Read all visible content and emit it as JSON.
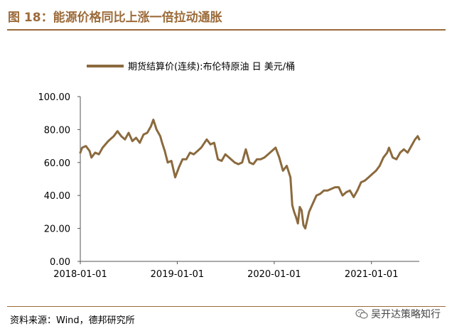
{
  "figure": {
    "title": "图 18：能源价格同比上涨一倍拉动通胀",
    "source": "资料来源：Wind，德邦研究所",
    "watermark": "吴开达策略知行",
    "watermark_icon": "wechat-icon",
    "accent_color": "#9c6b3a"
  },
  "chart_data": {
    "type": "line",
    "legend_position": "top",
    "grid": false,
    "ylim": [
      0,
      100
    ],
    "y_ticks": [
      "100.00",
      "80.00",
      "60.00",
      "40.00",
      "20.00",
      "0.00"
    ],
    "y_tick_values": [
      100,
      80,
      60,
      40,
      20,
      0
    ],
    "x_ticks": [
      "2018-01-01",
      "2019-01-01",
      "2020-01-01",
      "2021-01-01"
    ],
    "x_tick_values": [
      "2018-01-01",
      "2019-01-01",
      "2020-01-01",
      "2021-01-01"
    ],
    "xlim": [
      "2018-01-01",
      "2021-06-30"
    ],
    "series": [
      {
        "name": "期货结算价(连续):布伦特原油  日  美元/桶",
        "color": "#8b6a3e",
        "points": [
          [
            "2018-01-01",
            66
          ],
          [
            "2018-01-08",
            69
          ],
          [
            "2018-01-22",
            70
          ],
          [
            "2018-02-05",
            67
          ],
          [
            "2018-02-12",
            63
          ],
          [
            "2018-02-26",
            66
          ],
          [
            "2018-03-12",
            65
          ],
          [
            "2018-03-26",
            69
          ],
          [
            "2018-04-16",
            73
          ],
          [
            "2018-05-07",
            76
          ],
          [
            "2018-05-21",
            79
          ],
          [
            "2018-06-04",
            76
          ],
          [
            "2018-06-18",
            74
          ],
          [
            "2018-07-02",
            78
          ],
          [
            "2018-07-16",
            73
          ],
          [
            "2018-07-30",
            75
          ],
          [
            "2018-08-13",
            72
          ],
          [
            "2018-08-27",
            77
          ],
          [
            "2018-09-10",
            78
          ],
          [
            "2018-09-24",
            82
          ],
          [
            "2018-10-03",
            86
          ],
          [
            "2018-10-15",
            80
          ],
          [
            "2018-10-29",
            76
          ],
          [
            "2018-11-05",
            72
          ],
          [
            "2018-11-15",
            67
          ],
          [
            "2018-11-26",
            60
          ],
          [
            "2018-12-10",
            61
          ],
          [
            "2018-12-24",
            51
          ],
          [
            "2019-01-07",
            57
          ],
          [
            "2019-01-21",
            62
          ],
          [
            "2019-02-04",
            62
          ],
          [
            "2019-02-18",
            66
          ],
          [
            "2019-03-04",
            65
          ],
          [
            "2019-03-18",
            67
          ],
          [
            "2019-04-01",
            69
          ],
          [
            "2019-04-22",
            74
          ],
          [
            "2019-05-06",
            71
          ],
          [
            "2019-05-20",
            72
          ],
          [
            "2019-06-03",
            62
          ],
          [
            "2019-06-17",
            61
          ],
          [
            "2019-07-01",
            65
          ],
          [
            "2019-07-15",
            63
          ],
          [
            "2019-08-05",
            60
          ],
          [
            "2019-08-19",
            59
          ],
          [
            "2019-09-02",
            60
          ],
          [
            "2019-09-16",
            68
          ],
          [
            "2019-09-30",
            60
          ],
          [
            "2019-10-14",
            59
          ],
          [
            "2019-10-28",
            62
          ],
          [
            "2019-11-11",
            62
          ],
          [
            "2019-11-25",
            63
          ],
          [
            "2019-12-09",
            65
          ],
          [
            "2019-12-23",
            67
          ],
          [
            "2020-01-06",
            69
          ],
          [
            "2020-01-20",
            63
          ],
          [
            "2020-02-03",
            55
          ],
          [
            "2020-02-17",
            58
          ],
          [
            "2020-03-02",
            51
          ],
          [
            "2020-03-09",
            34
          ],
          [
            "2020-03-16",
            30
          ],
          [
            "2020-03-23",
            27
          ],
          [
            "2020-03-30",
            23
          ],
          [
            "2020-04-06",
            33
          ],
          [
            "2020-04-13",
            31
          ],
          [
            "2020-04-20",
            22
          ],
          [
            "2020-04-27",
            20
          ],
          [
            "2020-05-11",
            30
          ],
          [
            "2020-05-25",
            35
          ],
          [
            "2020-06-08",
            40
          ],
          [
            "2020-06-22",
            41
          ],
          [
            "2020-07-06",
            43
          ],
          [
            "2020-07-20",
            43
          ],
          [
            "2020-08-03",
            44
          ],
          [
            "2020-08-17",
            45
          ],
          [
            "2020-08-31",
            45
          ],
          [
            "2020-09-14",
            40
          ],
          [
            "2020-09-28",
            42
          ],
          [
            "2020-10-12",
            43
          ],
          [
            "2020-10-26",
            39
          ],
          [
            "2020-11-09",
            43
          ],
          [
            "2020-11-23",
            48
          ],
          [
            "2020-12-07",
            49
          ],
          [
            "2020-12-21",
            51
          ],
          [
            "2021-01-04",
            53
          ],
          [
            "2021-01-18",
            55
          ],
          [
            "2021-02-01",
            58
          ],
          [
            "2021-02-15",
            63
          ],
          [
            "2021-03-01",
            66
          ],
          [
            "2021-03-08",
            69
          ],
          [
            "2021-03-22",
            63
          ],
          [
            "2021-04-05",
            62
          ],
          [
            "2021-04-19",
            66
          ],
          [
            "2021-05-03",
            68
          ],
          [
            "2021-05-17",
            66
          ],
          [
            "2021-05-31",
            70
          ],
          [
            "2021-06-14",
            74
          ],
          [
            "2021-06-24",
            76
          ],
          [
            "2021-06-30",
            74
          ]
        ]
      }
    ]
  }
}
